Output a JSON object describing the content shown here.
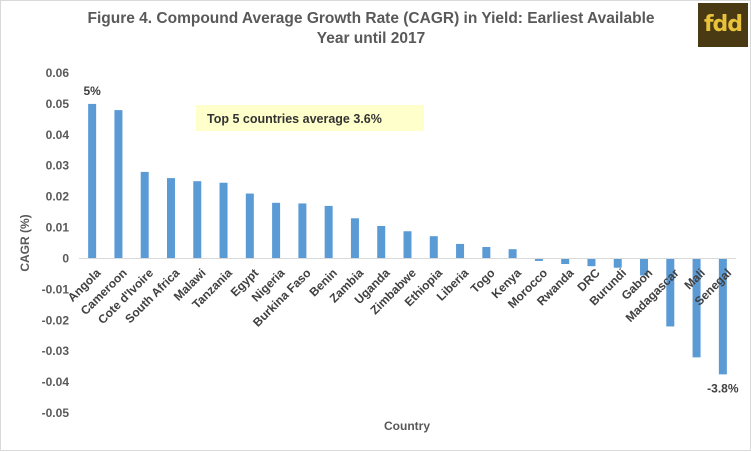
{
  "header": {
    "title_line1": "Figure 4. Compound Average Growth Rate (CAGR) in Yield: Earliest Available",
    "title_line2": "Year until 2017",
    "logo_text": "fdd"
  },
  "chart_data": {
    "type": "bar",
    "xlabel": "Country",
    "ylabel": "CAGR (%)",
    "ylim": [
      -0.05,
      0.06
    ],
    "yticks": [
      0.06,
      0.05,
      0.04,
      0.03,
      0.02,
      0.01,
      0,
      -0.01,
      -0.02,
      -0.03,
      -0.04,
      -0.05
    ],
    "ytick_labels": [
      "0.06",
      "0.05",
      "0.04",
      "0.03",
      "0.02",
      "0.01",
      "0",
      "-0.01",
      "-0.02",
      "-0.03",
      "-0.04",
      "-0.05"
    ],
    "grid": false,
    "bar_color": "#5b9bd5",
    "categories": [
      "Angola",
      "Cameroon",
      "Cote d'Ivoire",
      "South Africa",
      "Malawi",
      "Tanzania",
      "Egypt",
      "Nigeria",
      "Burkina Faso",
      "Benin",
      "Zambia",
      "Uganda",
      "Zimbabwe",
      "Ethiopia",
      "Liberia",
      "Togo",
      "Kenya",
      "Morocco",
      "Rwanda",
      "DRC",
      "Burundi",
      "Gabon",
      "Madagascar",
      "Mali",
      "Senegal"
    ],
    "values": [
      0.05,
      0.048,
      0.028,
      0.026,
      0.025,
      0.0245,
      0.021,
      0.018,
      0.0178,
      0.017,
      0.013,
      0.0105,
      0.0088,
      0.0072,
      0.0047,
      0.0037,
      0.003,
      -0.0008,
      -0.0018,
      -0.0025,
      -0.003,
      -0.0055,
      -0.022,
      -0.032,
      -0.0375
    ],
    "annotations": [
      {
        "category": "Angola",
        "text": "5%"
      },
      {
        "category": "Senegal",
        "text": "-3.8%"
      }
    ],
    "callout": {
      "text": "Top 5 countries  average 3.6%",
      "fill": "#ffffcc"
    }
  }
}
